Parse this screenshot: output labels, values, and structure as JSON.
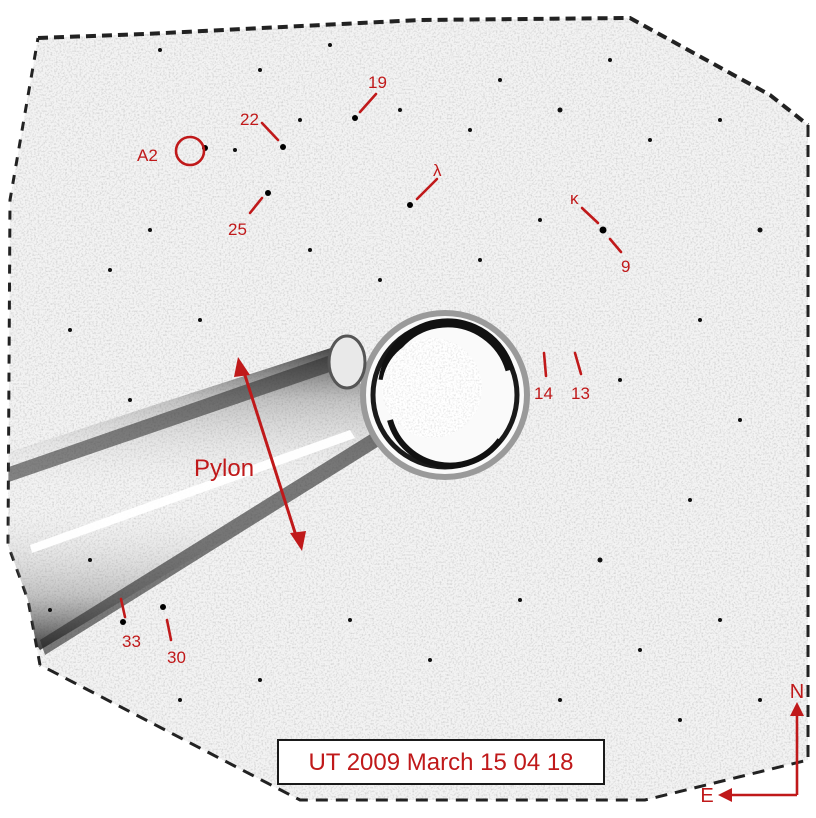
{
  "image": {
    "kind": "coronagraph difference image",
    "accent_color": "#c0191a",
    "background_color": "#f4f4f4"
  },
  "labels": {
    "star_19": "19",
    "star_22": "22",
    "star_A2": "A2",
    "star_lambda": "λ",
    "star_25": "25",
    "star_kappa": "κ",
    "star_9": "9",
    "star_14": "14",
    "star_13": "13",
    "pylon": "Pylon",
    "star_33": "33",
    "star_30": "30"
  },
  "timestamp": "UT 2009 March 15 04 18",
  "compass": {
    "north": "N",
    "east": "E"
  }
}
